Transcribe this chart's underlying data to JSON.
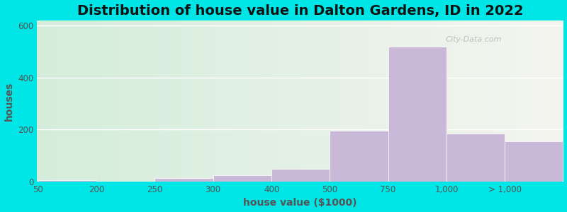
{
  "title": "Distribution of house value in Dalton Gardens, ID in 2022",
  "xlabel": "house value ($1000)",
  "ylabel": "houses",
  "tick_labels": [
    "50",
    "200",
    "250",
    "300",
    "400",
    "500",
    "750",
    "1,000",
    "> 1,000"
  ],
  "tick_positions": [
    0,
    1,
    2,
    3,
    4,
    5,
    6,
    7,
    8
  ],
  "bar_lefts": [
    0,
    1,
    2,
    3,
    4,
    5,
    6,
    7,
    8
  ],
  "bar_widths": [
    1,
    1,
    1,
    1,
    1,
    1,
    1,
    1,
    1
  ],
  "bar_heights": [
    5,
    0,
    15,
    25,
    50,
    195,
    520,
    185,
    155
  ],
  "bar_color": "#c9b8d8",
  "bar_edgecolor": "#ffffff",
  "ylim": [
    0,
    620
  ],
  "xlim": [
    -0.02,
    9.0
  ],
  "yticks": [
    0,
    200,
    400,
    600
  ],
  "bg_outer": "#00e5e5",
  "bg_gradient_left": "#d4edda",
  "bg_gradient_right": "#f5f5f0",
  "grid_color": "#ffffff",
  "title_fontsize": 14,
  "axis_fontsize": 10,
  "tick_fontsize": 8.5,
  "watermark_text": "City-Data.com"
}
